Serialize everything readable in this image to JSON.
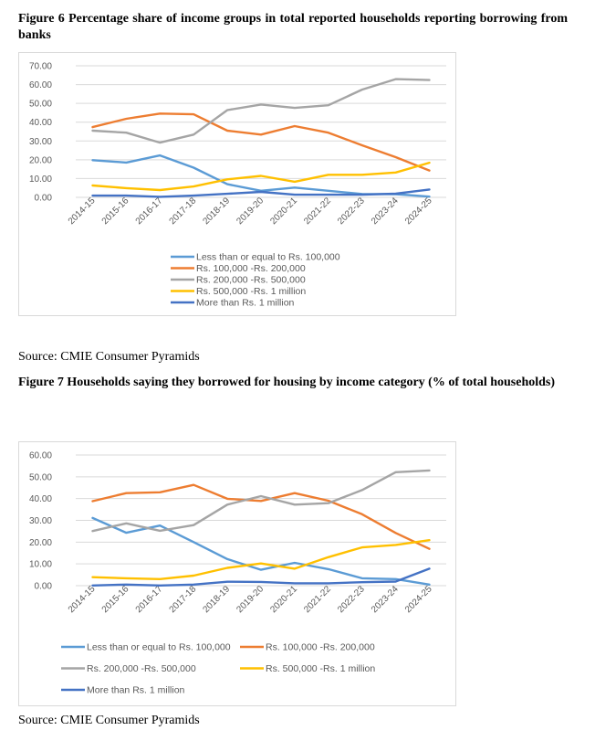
{
  "figure6": {
    "caption": "Figure 6 Percentage share of income groups in total reported households reporting borrowing from banks",
    "source": "Source: CMIE Consumer Pyramids"
  },
  "figure7": {
    "caption": "Figure 7 Households saying they borrowed for housing by income category (% of total households)",
    "source": "Source: CMIE Consumer Pyramids"
  },
  "chart_data": [
    {
      "type": "line",
      "title": "",
      "xlabel": "",
      "ylabel": "",
      "ylim": [
        0,
        70
      ],
      "yticks": [
        "0.00",
        "10.00",
        "20.00",
        "30.00",
        "40.00",
        "50.00",
        "60.00",
        "70.00"
      ],
      "categories": [
        "2014-15",
        "2015-16",
        "2016-17",
        "2017-18",
        "2018-19",
        "2019-20",
        "2020-21",
        "2021-22",
        "2022-23",
        "2023-24",
        "2024-25"
      ],
      "legend_position": "bottom",
      "series": [
        {
          "name": "Less than or equal  to Rs. 100,000",
          "color": "#5B9BD5",
          "values": [
            19.8,
            18.5,
            22.3,
            15.8,
            7.0,
            3.5,
            5.2,
            3.5,
            1.8,
            1.7,
            0.4
          ]
        },
        {
          "name": "Rs. 100,000 -Rs.  200,000",
          "color": "#ED7D31",
          "values": [
            37.4,
            41.8,
            44.6,
            44.2,
            35.5,
            33.4,
            37.9,
            34.4,
            27.7,
            21.4,
            14.3
          ]
        },
        {
          "name": "Rs. 200,000 -Rs.  500,000",
          "color": "#A5A5A5",
          "values": [
            35.5,
            34.4,
            29.1,
            33.4,
            46.4,
            49.4,
            47.6,
            49.0,
            57.3,
            62.9,
            62.4
          ]
        },
        {
          "name": "Rs. 500,000 -Rs.  1  million",
          "color": "#FFC000",
          "values": [
            6.3,
            4.9,
            3.9,
            5.8,
            9.6,
            11.4,
            8.3,
            12.0,
            12.0,
            13.2,
            18.4
          ]
        },
        {
          "name": "More than Rs.  1  million",
          "color": "#4472C4",
          "values": [
            0.9,
            0.9,
            0.3,
            0.9,
            1.9,
            2.9,
            1.4,
            1.4,
            1.4,
            2.0,
            4.2
          ]
        }
      ]
    },
    {
      "type": "line",
      "title": "",
      "xlabel": "",
      "ylabel": "",
      "ylim": [
        0,
        60
      ],
      "yticks": [
        "0.00",
        "10.00",
        "20.00",
        "30.00",
        "40.00",
        "50.00",
        "60.00"
      ],
      "categories": [
        "2014-15",
        "2015-16",
        "2016-17",
        "2017-18",
        "2018-19",
        "2019-20",
        "2020-21",
        "2021-22",
        "2022-23",
        "2023-24",
        "2024-25"
      ],
      "legend_position": "bottom",
      "series": [
        {
          "name": "Less than or equal  to Rs. 100,000",
          "color": "#5B9BD5",
          "values": [
            31.1,
            24.3,
            27.6,
            20.0,
            12.2,
            7.3,
            10.5,
            7.6,
            3.4,
            3.0,
            0.5
          ]
        },
        {
          "name": "Rs. 100,000 -Rs.  200,000",
          "color": "#ED7D31",
          "values": [
            38.8,
            42.5,
            42.9,
            46.3,
            39.9,
            38.9,
            42.5,
            39.0,
            32.8,
            24.2,
            16.9
          ]
        },
        {
          "name": "Rs. 200,000 -Rs.  500,000",
          "color": "#A5A5A5",
          "values": [
            25.1,
            28.6,
            25.2,
            27.8,
            37.2,
            41.1,
            37.2,
            37.9,
            43.9,
            52.1,
            52.9
          ]
        },
        {
          "name": "Rs. 500,000 -Rs.  1 million",
          "color": "#FFC000",
          "values": [
            3.9,
            3.4,
            3.0,
            4.6,
            8.2,
            10.2,
            7.8,
            13.1,
            17.6,
            18.7,
            20.9
          ]
        },
        {
          "name": "More than Rs.  1  million",
          "color": "#4472C4",
          "values": [
            0.1,
            0.5,
            0.1,
            0.5,
            1.8,
            1.7,
            1.1,
            1.1,
            1.6,
            1.9,
            7.8
          ]
        }
      ]
    }
  ]
}
